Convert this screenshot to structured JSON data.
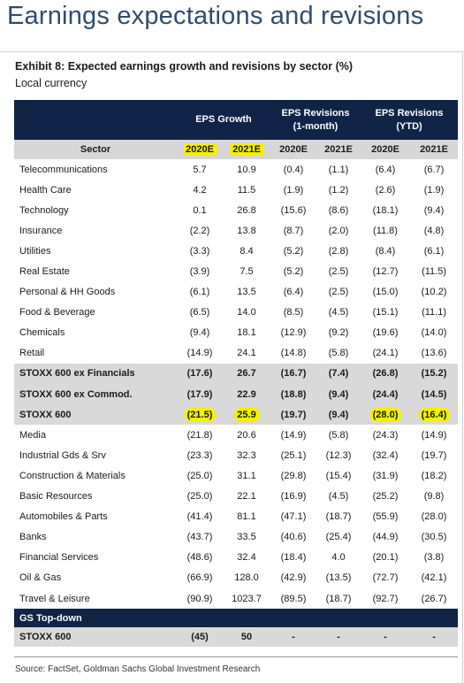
{
  "page_title": "Earnings expectations and revisions",
  "exhibit_title": "Exhibit 8: Expected earnings growth and revisions by sector (%)",
  "exhibit_subtitle": "Local currency",
  "group_headers": {
    "eps_growth": "EPS Growth",
    "eps_rev_1m_line1": "EPS Revisions",
    "eps_rev_1m_line2": "(1-month)",
    "eps_rev_ytd_line1": "EPS Revisions",
    "eps_rev_ytd_line2": "(YTD)"
  },
  "columns": [
    "Sector",
    "2020E",
    "2021E",
    "2020E",
    "2021E",
    "2020E",
    "2021E"
  ],
  "rows": [
    {
      "sector": "Telecommunications",
      "v": [
        "5.7",
        "10.9",
        "(0.4)",
        "(1.1)",
        "(6.4)",
        "(6.7)"
      ]
    },
    {
      "sector": "Health Care",
      "v": [
        "4.2",
        "11.5",
        "(1.9)",
        "(1.2)",
        "(2.6)",
        "(1.9)"
      ]
    },
    {
      "sector": "Technology",
      "v": [
        "0.1",
        "26.8",
        "(15.6)",
        "(8.6)",
        "(18.1)",
        "(9.4)"
      ]
    },
    {
      "sector": "Insurance",
      "v": [
        "(2.2)",
        "13.8",
        "(8.7)",
        "(2.0)",
        "(11.8)",
        "(4.8)"
      ]
    },
    {
      "sector": "Utilities",
      "v": [
        "(3.3)",
        "8.4",
        "(5.2)",
        "(2.8)",
        "(8.4)",
        "(6.1)"
      ]
    },
    {
      "sector": "Real Estate",
      "v": [
        "(3.9)",
        "7.5",
        "(5.2)",
        "(2.5)",
        "(12.7)",
        "(11.5)"
      ]
    },
    {
      "sector": "Personal & HH Goods",
      "v": [
        "(6.1)",
        "13.5",
        "(6.4)",
        "(2.5)",
        "(15.0)",
        "(10.2)"
      ]
    },
    {
      "sector": "Food & Beverage",
      "v": [
        "(6.5)",
        "14.0",
        "(8.5)",
        "(4.5)",
        "(15.1)",
        "(11.1)"
      ]
    },
    {
      "sector": "Chemicals",
      "v": [
        "(9.4)",
        "18.1",
        "(12.9)",
        "(9.2)",
        "(19.6)",
        "(14.0)"
      ]
    },
    {
      "sector": "Retail",
      "v": [
        "(14.9)",
        "24.1",
        "(14.8)",
        "(5.8)",
        "(24.1)",
        "(13.6)"
      ]
    },
    {
      "sector": "STOXX 600 ex Financials",
      "v": [
        "(17.6)",
        "26.7",
        "(16.7)",
        "(7.4)",
        "(26.8)",
        "(15.2)"
      ],
      "agg": true
    },
    {
      "sector": "STOXX 600 ex Commod.",
      "v": [
        "(17.9)",
        "22.9",
        "(18.8)",
        "(9.4)",
        "(24.4)",
        "(14.5)"
      ],
      "agg": true
    },
    {
      "sector": "STOXX 600",
      "v": [
        "(21.5)",
        "25.9",
        "(19.7)",
        "(9.4)",
        "(28.0)",
        "(16.4)"
      ],
      "agg": true,
      "highlight": [
        0,
        1,
        4,
        5
      ]
    },
    {
      "sector": "Media",
      "v": [
        "(21.8)",
        "20.6",
        "(14.9)",
        "(5.8)",
        "(24.3)",
        "(14.9)"
      ]
    },
    {
      "sector": "Industrial Gds & Srv",
      "v": [
        "(23.3)",
        "32.3",
        "(25.1)",
        "(12.3)",
        "(32.4)",
        "(19.7)"
      ]
    },
    {
      "sector": "Construction & Materials",
      "v": [
        "(25.0)",
        "31.1",
        "(29.8)",
        "(15.4)",
        "(31.9)",
        "(18.2)"
      ]
    },
    {
      "sector": "Basic Resources",
      "v": [
        "(25.0)",
        "22.1",
        "(16.9)",
        "(4.5)",
        "(25.2)",
        "(9.8)"
      ]
    },
    {
      "sector": "Automobiles & Parts",
      "v": [
        "(41.4)",
        "81.1",
        "(47.1)",
        "(18.7)",
        "(55.9)",
        "(28.0)"
      ]
    },
    {
      "sector": "Banks",
      "v": [
        "(43.7)",
        "33.5",
        "(40.6)",
        "(25.4)",
        "(44.9)",
        "(30.5)"
      ]
    },
    {
      "sector": "Financial Services",
      "v": [
        "(48.6)",
        "32.4",
        "(18.4)",
        "4.0",
        "(20.1)",
        "(3.8)"
      ]
    },
    {
      "sector": "Oil & Gas",
      "v": [
        "(66.9)",
        "128.0",
        "(42.9)",
        "(13.5)",
        "(72.7)",
        "(42.1)"
      ]
    },
    {
      "sector": "Travel & Leisure",
      "v": [
        "(90.9)",
        "1023.7",
        "(89.5)",
        "(18.7)",
        "(92.7)",
        "(26.7)"
      ]
    }
  ],
  "section_label": "GS Top-down",
  "topdown_row": {
    "sector": "STOXX 600",
    "v": [
      "(45)",
      "50",
      "-",
      "-",
      "-",
      "-"
    ]
  },
  "source": "Source: FactSet, Goldman Sachs Global Investment Research",
  "colors": {
    "header_navy": "#0f2447",
    "title_blue": "#2f4d6b",
    "highlight_yellow": "#f4f000",
    "aggregate_grey": "#d9d9d9"
  }
}
